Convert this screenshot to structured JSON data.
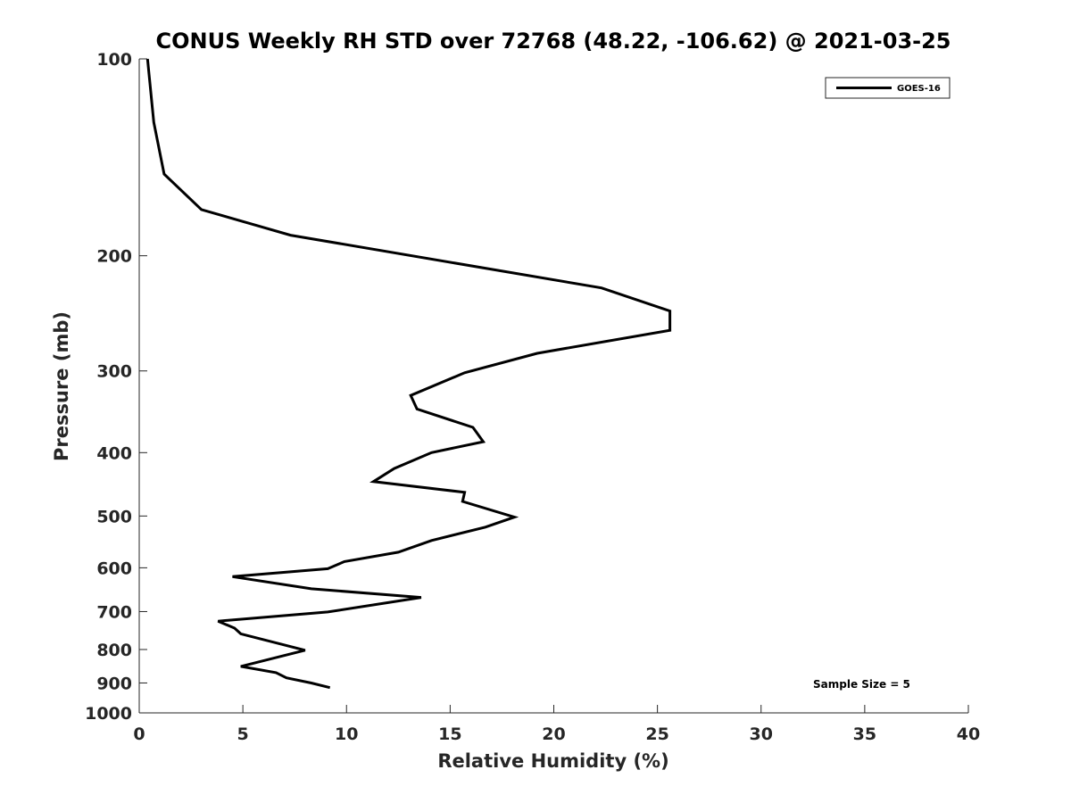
{
  "chart_data": {
    "type": "line",
    "title": "CONUS Weekly RH STD over 72768 (48.22, -106.62) @ 2021-03-25",
    "xlabel": "Relative Humidity (%)",
    "ylabel": "Pressure (mb)",
    "xlim": [
      0,
      40
    ],
    "ylim": [
      100,
      1000
    ],
    "y_scale": "log",
    "y_reversed": true,
    "grid": false,
    "legend_position": "top-right",
    "xticks": [
      "0",
      "5",
      "10",
      "15",
      "20",
      "25",
      "30",
      "35",
      "40"
    ],
    "yticks": [
      "100",
      "200",
      "300",
      "400",
      "500",
      "600",
      "700",
      "800",
      "900",
      "1000"
    ],
    "annotation": "Sample Size = 5",
    "series": [
      {
        "name": "GOES-16",
        "color": "#000000",
        "points": [
          [
            0.4,
            100
          ],
          [
            0.7,
            125
          ],
          [
            1.2,
            150
          ],
          [
            3.0,
            170
          ],
          [
            7.3,
            186
          ],
          [
            22.3,
            224
          ],
          [
            25.6,
            243
          ],
          [
            25.6,
            260
          ],
          [
            19.2,
            282
          ],
          [
            15.7,
            302
          ],
          [
            13.1,
            327
          ],
          [
            13.4,
            343
          ],
          [
            16.1,
            366
          ],
          [
            16.6,
            385
          ],
          [
            14.1,
            400
          ],
          [
            12.3,
            423
          ],
          [
            11.3,
            443
          ],
          [
            15.7,
            460
          ],
          [
            15.6,
            475
          ],
          [
            18.1,
            502
          ],
          [
            16.7,
            520
          ],
          [
            14.1,
            545
          ],
          [
            12.5,
            568
          ],
          [
            9.9,
            587
          ],
          [
            9.1,
            602
          ],
          [
            4.5,
            619
          ],
          [
            8.3,
            646
          ],
          [
            13.6,
            666
          ],
          [
            9.1,
            701
          ],
          [
            3.8,
            724
          ],
          [
            4.6,
            742
          ],
          [
            4.9,
            757
          ],
          [
            8.0,
            802
          ],
          [
            4.9,
            849
          ],
          [
            6.6,
            868
          ],
          [
            7.1,
            884
          ],
          [
            8.3,
            900
          ],
          [
            9.2,
            915
          ]
        ]
      }
    ]
  }
}
